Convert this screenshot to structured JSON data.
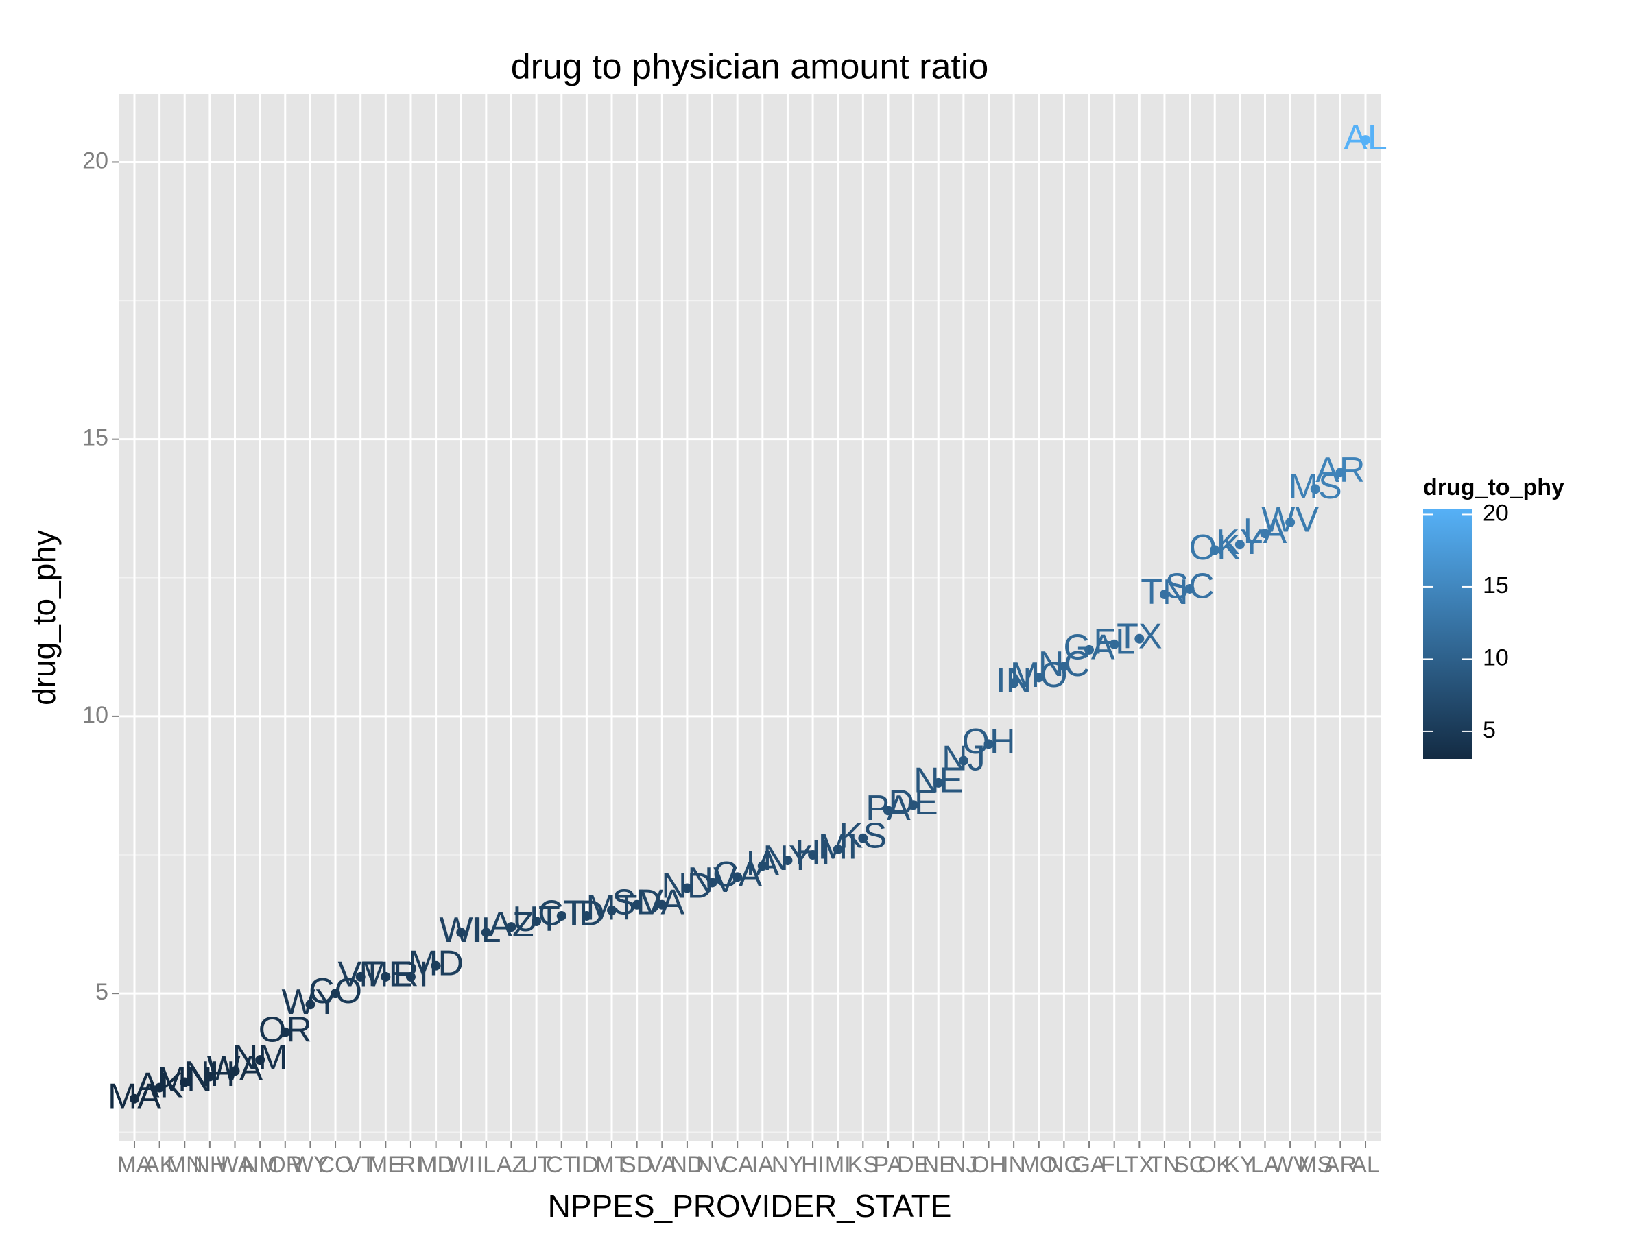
{
  "chart_data": {
    "type": "scatter",
    "title": "drug to physician amount ratio",
    "x_label": "NPPES_PROVIDER_STATE",
    "y_label": "drug_to_phy",
    "categories": [
      "MA",
      "AK",
      "MN",
      "NH",
      "WA",
      "NM",
      "OR",
      "WY",
      "CO",
      "VT",
      "ME",
      "RI",
      "MD",
      "WI",
      "IL",
      "AZ",
      "UT",
      "CT",
      "ID",
      "MT",
      "SD",
      "VA",
      "ND",
      "NV",
      "CA",
      "IA",
      "NY",
      "HI",
      "MI",
      "KS",
      "PA",
      "DE",
      "NE",
      "NJ",
      "OH",
      "IN",
      "MO",
      "NC",
      "GA",
      "FL",
      "TX",
      "TN",
      "SC",
      "OK",
      "KY",
      "LA",
      "WV",
      "MS",
      "AR",
      "AL"
    ],
    "values": [
      3.1,
      3.3,
      3.4,
      3.5,
      3.6,
      3.8,
      4.3,
      4.8,
      5.0,
      5.3,
      5.3,
      5.3,
      5.5,
      6.1,
      6.1,
      6.2,
      6.3,
      6.4,
      6.4,
      6.5,
      6.6,
      6.6,
      6.9,
      7.0,
      7.1,
      7.3,
      7.4,
      7.5,
      7.6,
      7.8,
      8.3,
      8.4,
      8.8,
      9.2,
      9.5,
      10.6,
      10.7,
      10.9,
      11.2,
      11.3,
      11.4,
      12.2,
      12.3,
      13.0,
      13.1,
      13.3,
      13.5,
      14.1,
      14.4,
      20.4
    ],
    "ylim": [
      2.33,
      21.23
    ],
    "yticks": [
      5,
      10,
      15,
      20
    ],
    "grid": true,
    "color_scale": {
      "low": "#132B43",
      "high": "#56B1F7"
    },
    "legend_title": "drug_to_phy",
    "legend_ticks": [
      5,
      10,
      15,
      20
    ]
  }
}
